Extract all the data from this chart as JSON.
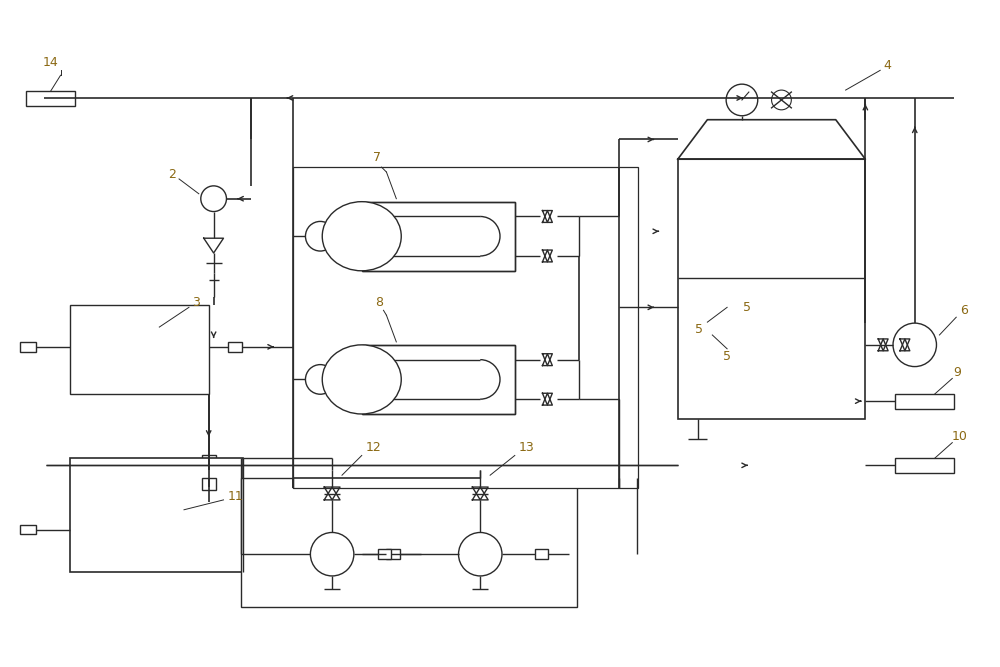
{
  "bg_color": "#ffffff",
  "line_color": "#2a2a2a",
  "label_color": "#8B6914",
  "figsize": [
    10.0,
    6.67
  ],
  "dpi": 100
}
